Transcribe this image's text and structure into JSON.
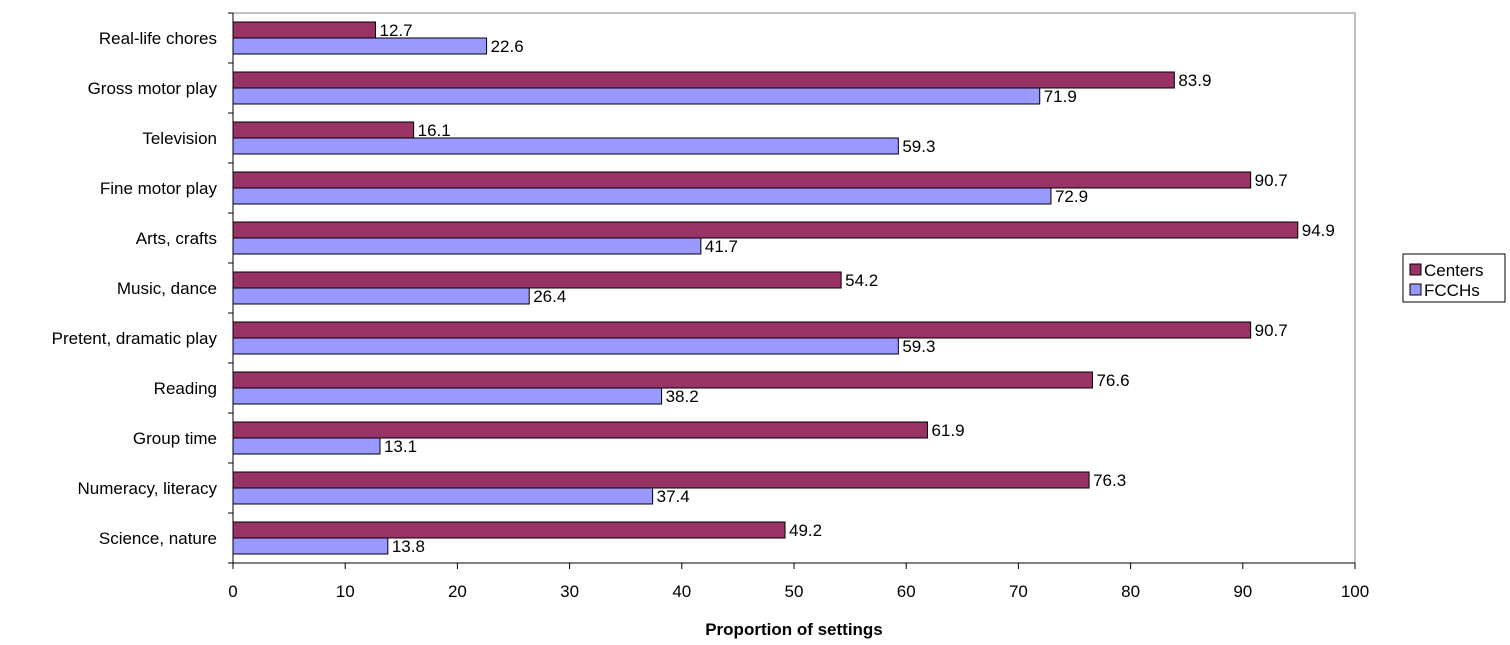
{
  "chart_data": {
    "type": "bar",
    "orientation": "horizontal",
    "categories": [
      "Real-life chores",
      "Gross motor play",
      "Television",
      "Fine motor play",
      "Arts, crafts",
      "Music, dance",
      "Pretent, dramatic play",
      "Reading",
      "Group time",
      "Numeracy, literacy",
      "Science, nature"
    ],
    "series": [
      {
        "name": "Centers",
        "color": "#993366",
        "values": [
          12.7,
          83.9,
          16.1,
          90.7,
          94.9,
          54.2,
          90.7,
          76.6,
          61.9,
          76.3,
          49.2
        ]
      },
      {
        "name": "FCCHs",
        "color": "#9999ff",
        "values": [
          22.6,
          71.9,
          59.3,
          72.9,
          41.7,
          26.4,
          59.3,
          38.2,
          13.1,
          37.4,
          13.8
        ]
      }
    ],
    "title": "",
    "xlabel": "Proportion of settings",
    "ylabel": "",
    "xlim": [
      0,
      100
    ],
    "xticks": [
      0,
      10,
      20,
      30,
      40,
      50,
      60,
      70,
      80,
      90,
      100
    ],
    "grid": false,
    "legend_position": "right"
  }
}
